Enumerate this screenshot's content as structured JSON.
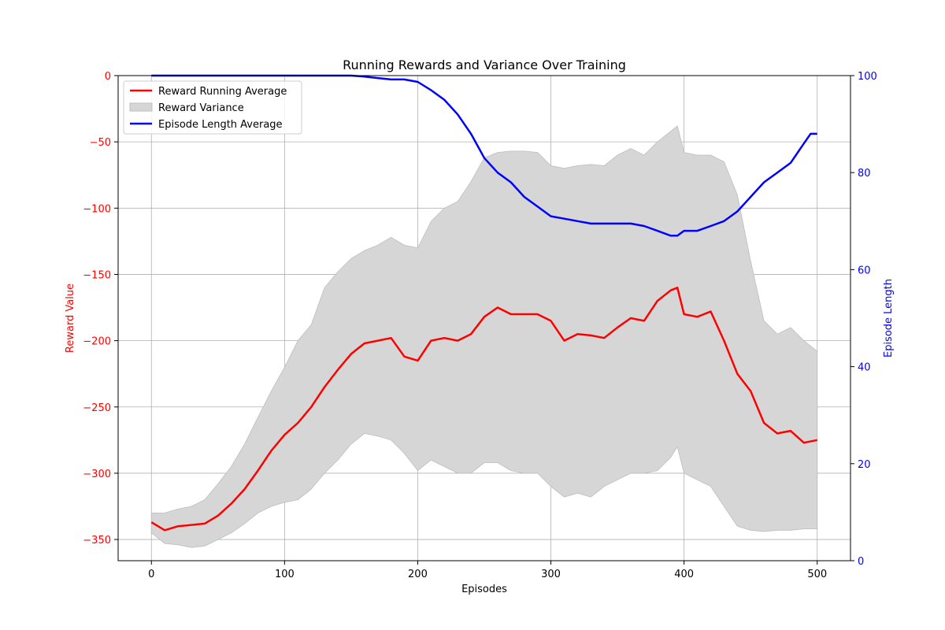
{
  "chart_data": {
    "type": "line",
    "title": "Running Rewards and Variance Over Training",
    "xlabel": "Episodes",
    "ylabel": "Reward Value",
    "y2label": "Episode Length",
    "xlim": [
      -25,
      525
    ],
    "ylim": [
      -366,
      0
    ],
    "y2lim": [
      0,
      100
    ],
    "xticks": [
      0,
      100,
      200,
      300,
      400,
      500
    ],
    "yticks": [
      0,
      -50,
      -100,
      -150,
      -200,
      -250,
      -300,
      -350
    ],
    "y2ticks": [
      0,
      20,
      40,
      60,
      80,
      100
    ],
    "grid": true,
    "legend_position": "upper-left",
    "colors": {
      "reward": "#ff0000",
      "variance": "#d6d6d6",
      "variance_edge": "#bdbdbd",
      "length": "#0000ff",
      "y_axis": "#ff0000",
      "y2_axis": "#0000ff"
    },
    "series": [
      {
        "name": "Reward Running Average",
        "axis": "left",
        "x": [
          0,
          10,
          20,
          30,
          40,
          50,
          60,
          70,
          80,
          90,
          100,
          110,
          120,
          130,
          140,
          150,
          160,
          170,
          180,
          190,
          200,
          210,
          220,
          230,
          240,
          250,
          260,
          270,
          280,
          290,
          300,
          310,
          320,
          330,
          340,
          350,
          360,
          370,
          380,
          390,
          395,
          400,
          410,
          420,
          430,
          440,
          450,
          460,
          470,
          480,
          490,
          500
        ],
        "y": [
          -337,
          -343,
          -340,
          -339,
          -338,
          -332,
          -323,
          -312,
          -298,
          -283,
          -271,
          -262,
          -250,
          -235,
          -222,
          -210,
          -202,
          -200,
          -198,
          -212,
          -215,
          -200,
          -198,
          -200,
          -195,
          -182,
          -175,
          -180,
          -180,
          -180,
          -185,
          -200,
          -195,
          -196,
          -198,
          -190,
          -183,
          -185,
          -170,
          -162,
          -160,
          -180,
          -182,
          -178,
          -200,
          -225,
          -238,
          -262,
          -270,
          -268,
          -277,
          -275
        ]
      },
      {
        "name": "Reward Variance",
        "axis": "left",
        "type": "band",
        "x": [
          0,
          10,
          20,
          30,
          40,
          50,
          60,
          70,
          80,
          90,
          100,
          110,
          120,
          130,
          140,
          150,
          160,
          170,
          180,
          190,
          200,
          210,
          220,
          230,
          240,
          250,
          260,
          270,
          280,
          290,
          300,
          310,
          320,
          330,
          340,
          350,
          360,
          370,
          380,
          390,
          395,
          400,
          410,
          420,
          430,
          440,
          450,
          460,
          470,
          480,
          490,
          500
        ],
        "upper": [
          -330,
          -330,
          -327,
          -325,
          -320,
          -308,
          -295,
          -278,
          -258,
          -238,
          -220,
          -200,
          -188,
          -160,
          -148,
          -138,
          -132,
          -128,
          -122,
          -128,
          -130,
          -110,
          -100,
          -95,
          -80,
          -62,
          -58,
          -57,
          -57,
          -58,
          -68,
          -70,
          -68,
          -67,
          -68,
          -60,
          -55,
          -60,
          -50,
          -42,
          -38,
          -58,
          -60,
          -60,
          -65,
          -90,
          -140,
          -185,
          -195,
          -190,
          -200,
          -208
        ],
        "lower": [
          -345,
          -353,
          -354,
          -356,
          -355,
          -350,
          -345,
          -338,
          -330,
          -325,
          -322,
          -320,
          -312,
          -300,
          -290,
          -278,
          -270,
          -272,
          -275,
          -285,
          -298,
          -290,
          -295,
          -300,
          -300,
          -292,
          -292,
          -298,
          -300,
          -300,
          -310,
          -318,
          -315,
          -318,
          -310,
          -305,
          -300,
          -300,
          -298,
          -288,
          -280,
          -300,
          -305,
          -310,
          -325,
          -340,
          -343,
          -344,
          -343,
          -343,
          -342,
          -342
        ]
      },
      {
        "name": "Episode Length Average",
        "axis": "right",
        "x": [
          0,
          50,
          100,
          150,
          160,
          170,
          180,
          190,
          200,
          210,
          220,
          230,
          240,
          250,
          260,
          270,
          280,
          290,
          300,
          310,
          320,
          330,
          340,
          350,
          360,
          370,
          380,
          390,
          395,
          400,
          410,
          420,
          430,
          440,
          450,
          460,
          470,
          480,
          490,
          495,
          500
        ],
        "y": [
          100,
          100,
          100,
          100,
          99.8,
          99.5,
          99.2,
          99.2,
          98.7,
          97,
          95,
          92,
          88,
          83,
          80,
          78,
          75,
          73,
          71,
          70.5,
          70,
          69.5,
          69.5,
          69.5,
          69.5,
          69,
          68,
          67,
          67,
          68,
          68,
          69,
          70,
          72,
          75,
          78,
          80,
          82,
          86,
          88,
          88
        ]
      }
    ]
  }
}
